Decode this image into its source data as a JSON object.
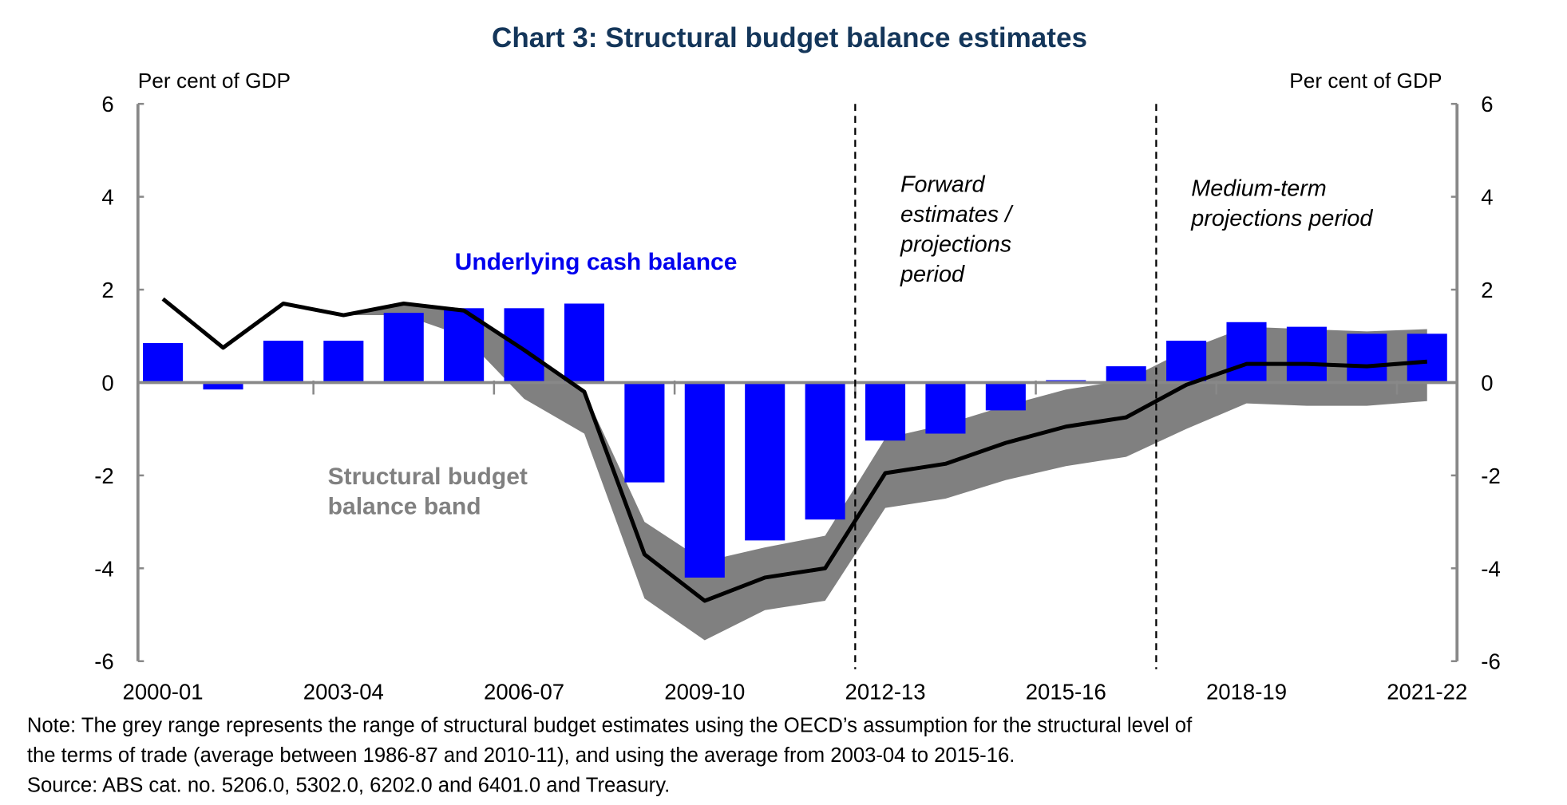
{
  "chart_data": {
    "type": "bar",
    "title": "Chart 3: Structural budget balance estimates",
    "ylabel_left": "Per cent of GDP",
    "ylabel_right": "Per cent of GDP",
    "ylim": [
      -6,
      6
    ],
    "yticks": [
      6,
      4,
      2,
      0,
      -2,
      -4,
      -6
    ],
    "ytick_labels": [
      "6",
      "4",
      "2",
      "0",
      "-2",
      "-4",
      "-6"
    ],
    "categories": [
      "2000-01",
      "2001-02",
      "2002-03",
      "2003-04",
      "2004-05",
      "2005-06",
      "2006-07",
      "2007-08",
      "2008-09",
      "2009-10",
      "2010-11",
      "2011-12",
      "2012-13",
      "2013-14",
      "2014-15",
      "2015-16",
      "2016-17",
      "2017-18",
      "2018-19",
      "2019-20",
      "2020-21",
      "2021-22"
    ],
    "xtick_labels": [
      "2000-01",
      "2003-04",
      "2006-07",
      "2009-10",
      "2012-13",
      "2015-16",
      "2018-19",
      "2021-22"
    ],
    "series": [
      {
        "name": "Underlying cash balance",
        "type": "bar",
        "color": "#0000ff",
        "values": [
          0.85,
          -0.15,
          0.9,
          0.9,
          1.5,
          1.6,
          1.6,
          1.7,
          -2.15,
          -4.2,
          -3.4,
          -2.95,
          -1.25,
          -1.1,
          -0.6,
          0.05,
          0.35,
          0.9,
          1.3,
          1.2,
          1.05,
          1.05
        ]
      },
      {
        "name": "Structural budget balance",
        "type": "line",
        "color": "#000000",
        "values": [
          1.8,
          0.75,
          1.7,
          1.45,
          1.7,
          1.55,
          0.7,
          -0.2,
          -3.7,
          -4.7,
          -4.2,
          -4.0,
          -1.95,
          -1.75,
          -1.3,
          -0.95,
          -0.75,
          -0.05,
          0.4,
          0.4,
          0.35,
          0.45
        ]
      },
      {
        "name": "Structural budget balance band",
        "type": "area",
        "color": "#808080",
        "start_index": 3,
        "upper": [
          1.45,
          1.7,
          1.6,
          0.7,
          -0.2,
          -3.0,
          -3.85,
          -3.55,
          -3.3,
          -1.2,
          -0.9,
          -0.5,
          -0.15,
          0.05,
          0.7,
          1.2,
          1.15,
          1.1,
          1.15
        ],
        "lower": [
          1.45,
          1.45,
          1.0,
          -0.35,
          -1.1,
          -4.65,
          -5.55,
          -4.9,
          -4.7,
          -2.7,
          -2.5,
          -2.1,
          -1.8,
          -1.6,
          -1.0,
          -0.45,
          -0.5,
          -0.5,
          -0.4
        ]
      }
    ],
    "labels": {
      "ucb": "Underlying cash balance",
      "band_line1": "Structural budget",
      "band_line2": "balance band",
      "forward": [
        "Forward",
        "estimates /",
        "projections",
        "period"
      ],
      "medium": [
        "Medium-term",
        "projections period"
      ]
    },
    "period_dividers_after": [
      "2011-12",
      "2016-17"
    ],
    "note": [
      "Note: The grey range represents the range of structural budget estimates using the OECD’s assumption for the structural level of",
      "the terms of trade (average between 1986-87 and 2010-11), and using the average from 2003-04 to 2015-16.",
      "Source: ABS cat. no. 5206.0, 5302.0, 6202.0 and 6401.0 and Treasury."
    ]
  }
}
